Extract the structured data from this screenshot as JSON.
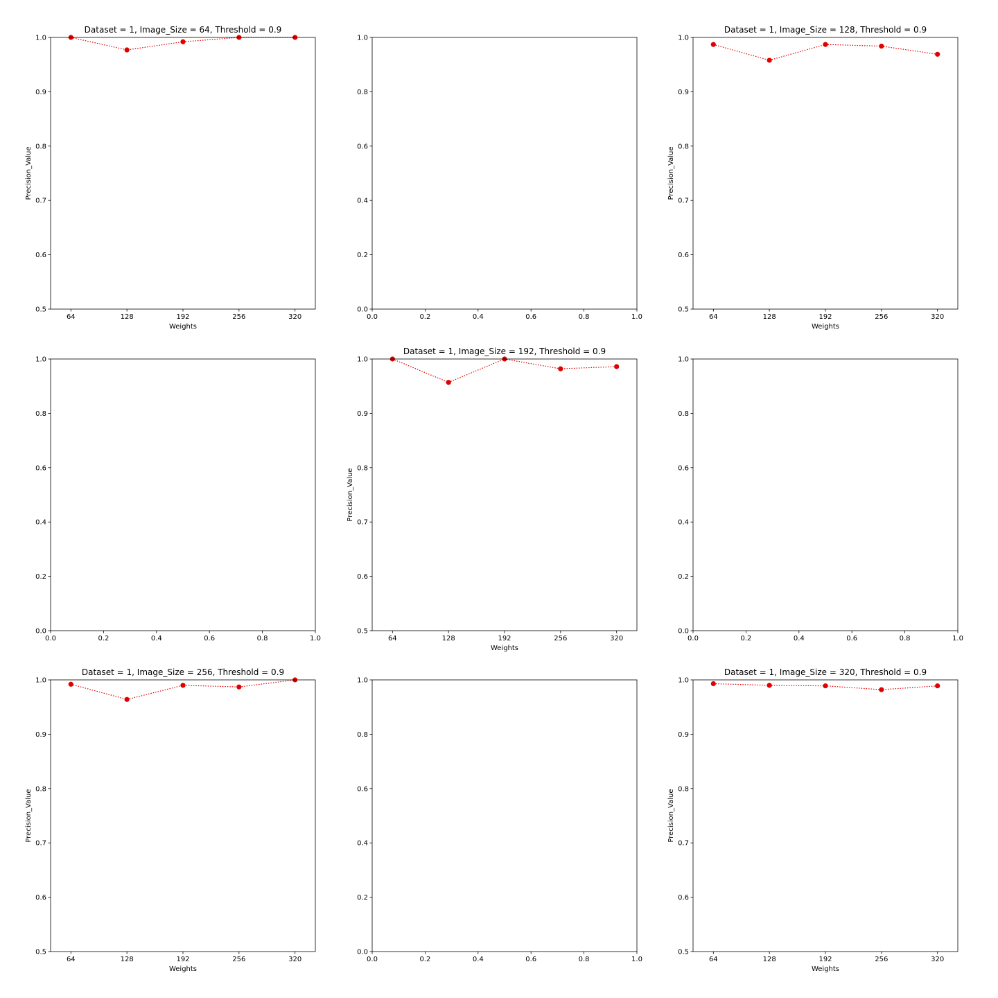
{
  "chart_data": [
    {
      "type": "line",
      "title": "Dataset = 1, Image_Size = 64, Threshold = 0.9",
      "xlabel": "Weights",
      "ylabel": "Precision_Value",
      "x": [
        64,
        128,
        192,
        256,
        320
      ],
      "xticks": [
        "64",
        "128",
        "192",
        "256",
        "320"
      ],
      "yticks": [
        "0.5",
        "0.6",
        "0.7",
        "0.8",
        "0.9",
        "1.0"
      ],
      "xlim": [
        40.8,
        343.2
      ],
      "ylim": [
        0.5,
        1.0
      ],
      "series": [
        {
          "values": [
            1.0,
            0.977,
            0.992,
            1.0,
            1.0
          ],
          "color": "#e00000"
        }
      ],
      "grid": false
    },
    {
      "type": "line",
      "title": "",
      "xlabel": "",
      "ylabel": "",
      "xticks": [
        "0.0",
        "0.2",
        "0.4",
        "0.6",
        "0.8",
        "1.0"
      ],
      "yticks": [
        "0.0",
        "0.2",
        "0.4",
        "0.6",
        "0.8",
        "1.0"
      ],
      "xlim": [
        0,
        1
      ],
      "ylim": [
        0,
        1
      ],
      "series": [],
      "grid": false
    },
    {
      "type": "line",
      "title": "Dataset = 1, Image_Size = 128, Threshold = 0.9",
      "xlabel": "Weights",
      "ylabel": "Precision_Value",
      "x": [
        64,
        128,
        192,
        256,
        320
      ],
      "xticks": [
        "64",
        "128",
        "192",
        "256",
        "320"
      ],
      "yticks": [
        "0.5",
        "0.6",
        "0.7",
        "0.8",
        "0.9",
        "1.0"
      ],
      "xlim": [
        40.8,
        343.2
      ],
      "ylim": [
        0.5,
        1.0
      ],
      "series": [
        {
          "values": [
            0.987,
            0.958,
            0.987,
            0.984,
            0.969
          ],
          "color": "#e00000"
        }
      ],
      "grid": false
    },
    {
      "type": "line",
      "title": "",
      "xlabel": "",
      "ylabel": "",
      "xticks": [
        "0.0",
        "0.2",
        "0.4",
        "0.6",
        "0.8",
        "1.0"
      ],
      "yticks": [
        "0.0",
        "0.2",
        "0.4",
        "0.6",
        "0.8",
        "1.0"
      ],
      "xlim": [
        0,
        1
      ],
      "ylim": [
        0,
        1
      ],
      "series": [],
      "grid": false
    },
    {
      "type": "line",
      "title": "Dataset = 1, Image_Size = 192, Threshold = 0.9",
      "xlabel": "Weights",
      "ylabel": "Precision_Value",
      "x": [
        64,
        128,
        192,
        256,
        320
      ],
      "xticks": [
        "64",
        "128",
        "192",
        "256",
        "320"
      ],
      "yticks": [
        "0.5",
        "0.6",
        "0.7",
        "0.8",
        "0.9",
        "1.0"
      ],
      "xlim": [
        40.8,
        343.2
      ],
      "ylim": [
        0.5,
        1.0
      ],
      "series": [
        {
          "values": [
            1.0,
            0.957,
            1.0,
            0.982,
            0.986
          ],
          "color": "#e00000"
        }
      ],
      "grid": false
    },
    {
      "type": "line",
      "title": "",
      "xlabel": "",
      "ylabel": "",
      "xticks": [
        "0.0",
        "0.2",
        "0.4",
        "0.6",
        "0.8",
        "1.0"
      ],
      "yticks": [
        "0.0",
        "0.2",
        "0.4",
        "0.6",
        "0.8",
        "1.0"
      ],
      "xlim": [
        0,
        1
      ],
      "ylim": [
        0,
        1
      ],
      "series": [],
      "grid": false
    },
    {
      "type": "line",
      "title": "Dataset = 1, Image_Size = 256, Threshold = 0.9",
      "xlabel": "Weights",
      "ylabel": "Precision_Value",
      "x": [
        64,
        128,
        192,
        256,
        320
      ],
      "xticks": [
        "64",
        "128",
        "192",
        "256",
        "320"
      ],
      "yticks": [
        "0.5",
        "0.6",
        "0.7",
        "0.8",
        "0.9",
        "1.0"
      ],
      "xlim": [
        40.8,
        343.2
      ],
      "ylim": [
        0.5,
        1.0
      ],
      "series": [
        {
          "values": [
            0.992,
            0.964,
            0.99,
            0.987,
            1.0
          ],
          "color": "#e00000"
        }
      ],
      "grid": false
    },
    {
      "type": "line",
      "title": "",
      "xlabel": "",
      "ylabel": "",
      "xticks": [
        "0.0",
        "0.2",
        "0.4",
        "0.6",
        "0.8",
        "1.0"
      ],
      "yticks": [
        "0.0",
        "0.2",
        "0.4",
        "0.6",
        "0.8",
        "1.0"
      ],
      "xlim": [
        0,
        1
      ],
      "ylim": [
        0,
        1
      ],
      "series": [],
      "grid": false
    },
    {
      "type": "line",
      "title": "Dataset = 1, Image_Size = 320, Threshold = 0.9",
      "xlabel": "Weights",
      "ylabel": "Precision_Value",
      "x": [
        64,
        128,
        192,
        256,
        320
      ],
      "xticks": [
        "64",
        "128",
        "192",
        "256",
        "320"
      ],
      "yticks": [
        "0.5",
        "0.6",
        "0.7",
        "0.8",
        "0.9",
        "1.0"
      ],
      "xlim": [
        40.8,
        343.2
      ],
      "ylim": [
        0.5,
        1.0
      ],
      "series": [
        {
          "values": [
            0.993,
            0.99,
            0.989,
            0.982,
            0.989
          ],
          "color": "#e00000"
        }
      ],
      "grid": false
    }
  ]
}
